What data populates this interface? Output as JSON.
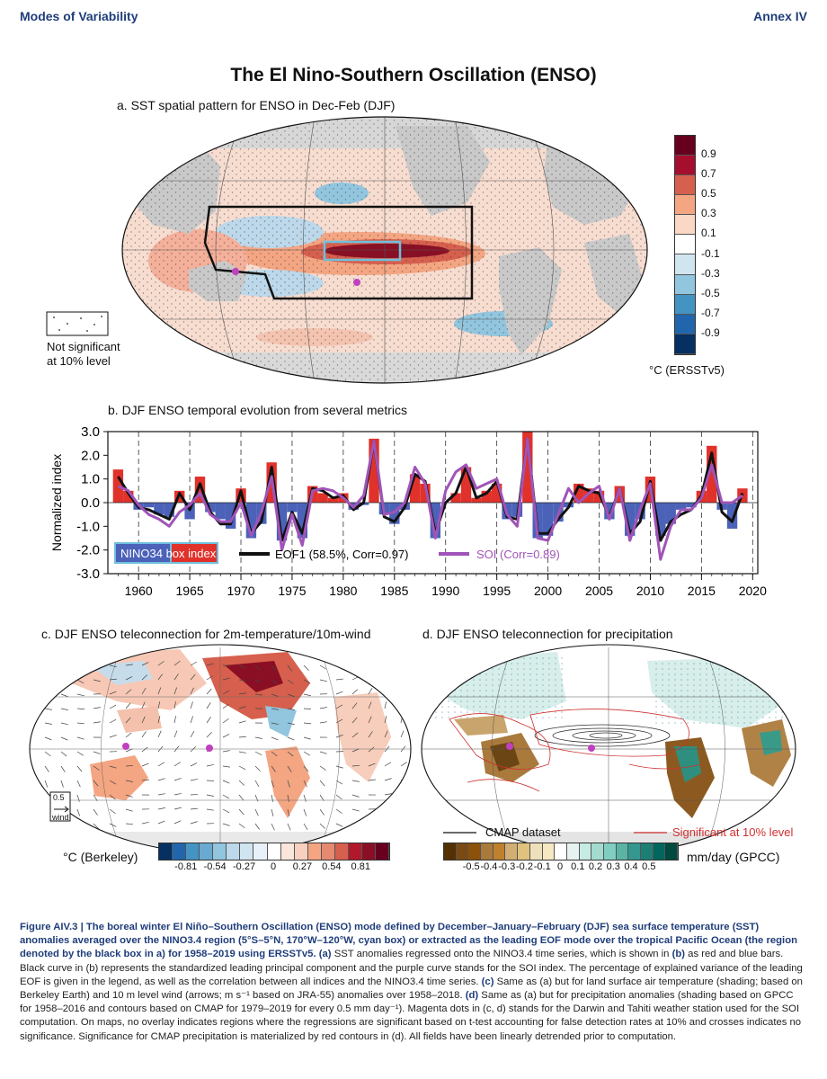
{
  "header": {
    "left": "Modes of Variability",
    "right": "Annex IV"
  },
  "figure_title": "The El Nino-Southern Oscillation (ENSO)",
  "panel_a": {
    "title": "a. SST spatial pattern for ENSO in Dec-Feb (DJF)",
    "colorbar_ticks": [
      "0.9",
      "0.7",
      "0.5",
      "0.3",
      "0.1",
      "-0.1",
      "-0.3",
      "-0.5",
      "-0.7",
      "-0.9"
    ],
    "colorbar_colors": [
      "#67001f",
      "#a50f2d",
      "#d6604d",
      "#f4a582",
      "#fbd7c6",
      "#ffffff",
      "#d1e5f0",
      "#92c5de",
      "#4393c3",
      "#2166ac",
      "#053061"
    ],
    "units": "°C (ERSSTv5)",
    "legend_line1": "Not significant",
    "legend_line2": "at 10% level"
  },
  "panel_b": {
    "title": "b. DJF ENSO temporal evolution from several metrics"
  },
  "panel_c": {
    "title": "c. DJF ENSO teleconnection for 2m-temperature/10m-wind",
    "wind_ref": "0.5",
    "wind_label": "wind",
    "units": "°C (Berkeley)",
    "colorbar_ticks": [
      "-0.81",
      "-0.54",
      "-0.27",
      "0",
      "0.27",
      "0.54",
      "0.81"
    ]
  },
  "panel_d": {
    "title": "d. DJF ENSO teleconnection for precipitation",
    "legend_cmap": "CMAP dataset",
    "legend_sig": "Significant at 10% level",
    "units": "mm/day (GPCC)",
    "colorbar_ticks": [
      "-0.5",
      "-0.4",
      "-0.3",
      "-0.2",
      "-0.1",
      "0",
      "0.1",
      "0.2",
      "0.3",
      "0.4",
      "0.5"
    ]
  },
  "chart_data": {
    "type": "bar",
    "title": "b. DJF ENSO temporal evolution from several metrics",
    "ylabel": "Normalized index",
    "xlabel": "",
    "xlim": [
      1957,
      2020.5
    ],
    "ylim": [
      -3.0,
      3.0
    ],
    "xticks": [
      1960,
      1965,
      1970,
      1975,
      1980,
      1985,
      1990,
      1995,
      2000,
      2005,
      2010,
      2015,
      2020
    ],
    "yticks": [
      3.0,
      2.0,
      1.0,
      0.0,
      -1.0,
      -2.0,
      -3.0
    ],
    "ytick_labels": [
      "3.0",
      "2.0",
      "1.0",
      "0.0",
      "-1.0",
      "-2.0",
      "-3.0"
    ],
    "x": [
      1958,
      1959,
      1960,
      1961,
      1962,
      1963,
      1964,
      1965,
      1966,
      1967,
      1968,
      1969,
      1970,
      1971,
      1972,
      1973,
      1974,
      1975,
      1976,
      1977,
      1978,
      1979,
      1980,
      1981,
      1982,
      1983,
      1984,
      1985,
      1986,
      1987,
      1988,
      1989,
      1990,
      1991,
      1992,
      1993,
      1994,
      1995,
      1996,
      1997,
      1998,
      1999,
      2000,
      2001,
      2002,
      2003,
      2004,
      2005,
      2006,
      2007,
      2008,
      2009,
      2010,
      2011,
      2012,
      2013,
      2014,
      2015,
      2016,
      2017,
      2018,
      2019
    ],
    "series": [
      {
        "name": "NINO34 box index",
        "style": "bars",
        "values": [
          1.4,
          0.5,
          -0.3,
          -0.2,
          -0.5,
          -0.6,
          0.5,
          -0.7,
          1.1,
          -0.4,
          -0.7,
          -1.1,
          0.6,
          -1.5,
          -0.9,
          1.7,
          -1.6,
          -0.4,
          -1.5,
          0.7,
          0.4,
          0.2,
          0.4,
          -0.3,
          -0.1,
          2.7,
          -0.5,
          -0.9,
          -0.3,
          1.2,
          0.8,
          -1.5,
          0.0,
          0.4,
          1.5,
          0.2,
          0.5,
          0.8,
          -0.7,
          -0.6,
          3.0,
          -1.5,
          -1.4,
          -0.8,
          -0.2,
          0.8,
          0.6,
          0.5,
          -0.7,
          0.7,
          -1.4,
          -0.7,
          1.1,
          -1.4,
          -0.9,
          -0.3,
          -0.2,
          0.5,
          2.4,
          -0.3,
          -1.1,
          0.6
        ]
      },
      {
        "name": "EOF1 (58.5%, Corr=0.97)",
        "style": "line",
        "color": "#111111",
        "values": [
          1.1,
          0.4,
          -0.2,
          -0.3,
          -0.5,
          -0.7,
          0.4,
          -0.3,
          0.8,
          -0.4,
          -0.9,
          -0.9,
          0.5,
          -1.3,
          -0.8,
          1.5,
          -1.6,
          -0.4,
          -1.3,
          0.6,
          0.5,
          0.2,
          0.3,
          -0.3,
          0.0,
          2.6,
          -0.6,
          -0.8,
          -0.2,
          1.2,
          0.9,
          -1.3,
          0.0,
          0.4,
          1.5,
          0.2,
          0.4,
          0.9,
          -0.6,
          -0.7,
          2.7,
          -1.3,
          -1.3,
          -0.7,
          -0.2,
          0.7,
          0.5,
          0.4,
          -0.6,
          0.6,
          -1.3,
          -0.8,
          0.9,
          -1.6,
          -0.8,
          -0.5,
          -0.3,
          0.3,
          2.1,
          -0.4,
          -0.8,
          0.4
        ]
      },
      {
        "name": "SOI (Corr=0.89)",
        "style": "line",
        "color": "#a054b8",
        "values": [
          0.7,
          0.5,
          -0.1,
          -0.5,
          -0.7,
          -1.0,
          -0.4,
          -0.1,
          0.4,
          -0.5,
          -0.8,
          -0.8,
          0.0,
          -1.4,
          -0.4,
          1.1,
          -2.0,
          -0.5,
          -1.8,
          0.5,
          0.6,
          0.5,
          0.2,
          -0.2,
          0.3,
          2.6,
          -0.5,
          -0.4,
          0.0,
          1.5,
          0.8,
          -1.5,
          0.5,
          1.3,
          1.6,
          0.6,
          0.8,
          1.0,
          -0.5,
          -1.0,
          2.7,
          -1.5,
          -1.6,
          -0.5,
          0.6,
          0.0,
          0.4,
          0.7,
          -0.7,
          0.6,
          -1.6,
          -0.3,
          0.8,
          -2.4,
          -1.0,
          -0.3,
          -0.3,
          0.2,
          1.6,
          0.0,
          0.0,
          0.3
        ]
      }
    ],
    "legend": [
      "NINO34 box index",
      "EOF1 (58.5%, Corr=0.97)",
      "SOI (Corr=0.89)"
    ]
  },
  "caption": {
    "figure_label": "Figure AIV.3 | The boreal winter El Niño–Southern Oscillation (ENSO) mode defined by December–January–February (DJF) sea surface temperature (SST) anomalies averaged over the NINO3.4 region (5°S–5°N, 170°W–120°W, cyan box) or extracted as the leading EOF mode over the tropical Pacific Ocean (the region denoted by the black box in a) for 1958–2019 using ERSSTv5.",
    "t1": " SST anomalies regressed onto the NINO3.4 time series, which is shown in ",
    "t2": " as red and blue bars. Black curve in (b) represents the standardized leading principal component and the purple curve stands for the SOI index. The percentage of explained variance of the leading EOF is given in the legend, as well as the correlation between all indices and the NINO3.4 time series. ",
    "t3": " Same as (a) but for land surface air temperature (shading; based on Berkeley Earth) and 10 m level wind (arrows; m s⁻¹ based on JRA-55) anomalies over 1958–2018. ",
    "t4": " Same as (a) but for precipitation anomalies (shading based on GPCC for 1958–2016 and contours based on CMAP for 1979–2019 for every 0.5 mm day⁻¹). Magenta dots in (c, d) stands for the Darwin and Tahiti weather station used for the SOI computation. On maps, no overlay indicates regions where the regressions are significant based on t-test accounting for false detection rates at 10% and crosses indicates no significance. Significance for CMAP precipitation is materialized by red contours in (d). All fields have been linearly detrended prior to computation.",
    "ref_a": "(a)",
    "ref_b": "(b)",
    "ref_c": "(c)",
    "ref_d": "(d)"
  }
}
